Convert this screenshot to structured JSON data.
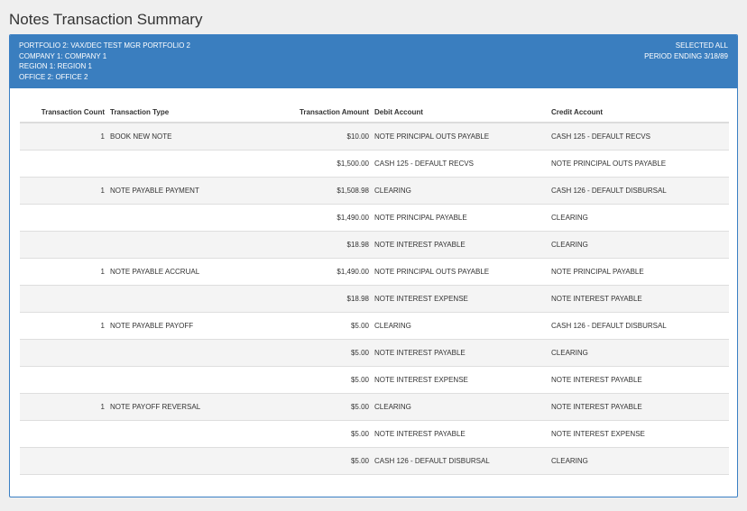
{
  "page": {
    "title": "Notes Transaction Summary"
  },
  "header": {
    "left_lines": [
      "PORTFOLIO  2:  VAX/DEC TEST MGR PORTFOLIO 2",
      "COMPANY  1:  COMPANY 1",
      "REGION  1:  REGION 1",
      "OFFICE  2:  OFFICE 2"
    ],
    "right_lines": [
      "SELECTED ALL",
      "PERIOD ENDING 3/18/89"
    ]
  },
  "colors": {
    "header_bg": "#3a7ebf",
    "row_alt": "#f4f4f4"
  },
  "table": {
    "columns": [
      "Transaction Count",
      "Transaction Type",
      "Transaction Amount",
      "Debit Account",
      "Credit Account"
    ],
    "rows": [
      {
        "count": "1",
        "type": "BOOK NEW NOTE",
        "amount": "$10.00",
        "debit": "NOTE PRINCIPAL OUTS PAYABLE",
        "credit": "CASH 125 - DEFAULT RECVS"
      },
      {
        "count": "",
        "type": "",
        "amount": "$1,500.00",
        "debit": "CASH 125 - DEFAULT RECVS",
        "credit": "NOTE PRINCIPAL OUTS PAYABLE"
      },
      {
        "count": "1",
        "type": "NOTE PAYABLE PAYMENT",
        "amount": "$1,508.98",
        "debit": "CLEARING",
        "credit": "CASH 126 - DEFAULT DISBURSAL"
      },
      {
        "count": "",
        "type": "",
        "amount": "$1,490.00",
        "debit": "NOTE PRINCIPAL PAYABLE",
        "credit": "CLEARING"
      },
      {
        "count": "",
        "type": "",
        "amount": "$18.98",
        "debit": "NOTE INTEREST PAYABLE",
        "credit": "CLEARING"
      },
      {
        "count": "1",
        "type": "NOTE PAYABLE ACCRUAL",
        "amount": "$1,490.00",
        "debit": "NOTE PRINCIPAL OUTS PAYABLE",
        "credit": "NOTE PRINCIPAL PAYABLE"
      },
      {
        "count": "",
        "type": "",
        "amount": "$18.98",
        "debit": "NOTE INTEREST EXPENSE",
        "credit": "NOTE INTEREST PAYABLE"
      },
      {
        "count": "1",
        "type": "NOTE PAYABLE PAYOFF",
        "amount": "$5.00",
        "debit": "CLEARING",
        "credit": "CASH 126 - DEFAULT DISBURSAL"
      },
      {
        "count": "",
        "type": "",
        "amount": "$5.00",
        "debit": "NOTE INTEREST PAYABLE",
        "credit": "CLEARING"
      },
      {
        "count": "",
        "type": "",
        "amount": "$5.00",
        "debit": "NOTE INTEREST EXPENSE",
        "credit": "NOTE INTEREST PAYABLE"
      },
      {
        "count": "1",
        "type": "NOTE PAYOFF REVERSAL",
        "amount": "$5.00",
        "debit": "CLEARING",
        "credit": "NOTE INTEREST PAYABLE"
      },
      {
        "count": "",
        "type": "",
        "amount": "$5.00",
        "debit": "NOTE INTEREST PAYABLE",
        "credit": "NOTE INTEREST EXPENSE"
      },
      {
        "count": "",
        "type": "",
        "amount": "$5.00",
        "debit": "CASH 126 - DEFAULT DISBURSAL",
        "credit": "CLEARING"
      }
    ]
  }
}
